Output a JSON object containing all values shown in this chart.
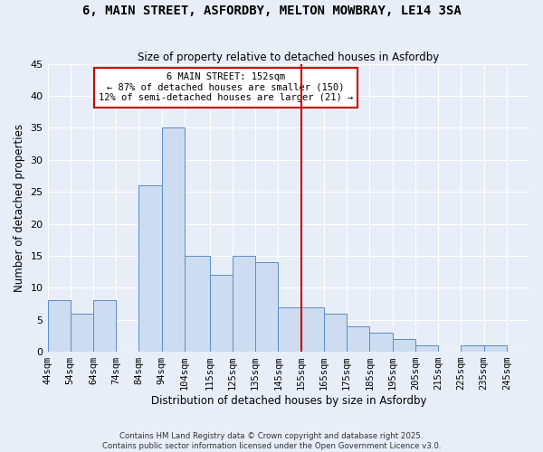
{
  "title": "6, MAIN STREET, ASFORDBY, MELTON MOWBRAY, LE14 3SA",
  "subtitle": "Size of property relative to detached houses in Asfordby",
  "xlabel": "Distribution of detached houses by size in Asfordby",
  "ylabel": "Number of detached properties",
  "bin_labels": [
    "44sqm",
    "54sqm",
    "64sqm",
    "74sqm",
    "84sqm",
    "94sqm",
    "104sqm",
    "115sqm",
    "125sqm",
    "135sqm",
    "145sqm",
    "155sqm",
    "165sqm",
    "175sqm",
    "185sqm",
    "195sqm",
    "205sqm",
    "215sqm",
    "225sqm",
    "235sqm",
    "245sqm"
  ],
  "bin_starts": [
    44,
    54,
    64,
    74,
    84,
    94,
    104,
    115,
    125,
    135,
    145,
    155,
    165,
    175,
    185,
    195,
    205,
    215,
    225,
    235,
    245
  ],
  "bar_values": [
    8,
    6,
    8,
    0,
    26,
    35,
    15,
    12,
    15,
    14,
    7,
    7,
    6,
    4,
    3,
    2,
    1,
    0,
    1,
    1,
    0
  ],
  "bar_color": "#cddcf0",
  "bar_edge_color": "#5b8cc8",
  "vline_x": 155,
  "vline_color": "#cc0000",
  "annotation_title": "6 MAIN STREET: 152sqm",
  "annotation_line1": "← 87% of detached houses are smaller (150)",
  "annotation_line2": "12% of semi-detached houses are larger (21) →",
  "annotation_box_color": "#ffffff",
  "annotation_box_edge": "#cc0000",
  "ylim": [
    0,
    45
  ],
  "yticks": [
    0,
    5,
    10,
    15,
    20,
    25,
    30,
    35,
    40,
    45
  ],
  "bg_color": "#e8eef8",
  "footer1": "Contains HM Land Registry data © Crown copyright and database right 2025.",
  "footer2": "Contains public sector information licensed under the Open Government Licence v3.0."
}
